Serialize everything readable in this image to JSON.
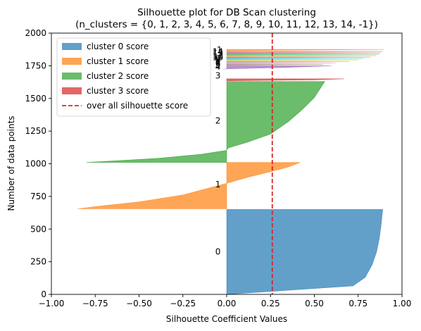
{
  "chart_data": {
    "type": "silhouette",
    "title": "Silhouette plot for DB Scan clustering",
    "subtitle": "(n_clusters = {0, 1, 2, 3, 4, 5, 6, 7, 8, 9, 10, 11, 12, 13, 14, -1})",
    "xlabel": "Silhouette Coefficient Values",
    "ylabel": "Number of data points",
    "xlim": [
      -1.0,
      1.0
    ],
    "ylim": [
      0,
      2000
    ],
    "xticks": [
      -1.0,
      -0.75,
      -0.5,
      -0.25,
      0.0,
      0.25,
      0.5,
      0.75,
      1.0
    ],
    "xtick_labels": [
      "−1.00",
      "−0.75",
      "−0.50",
      "−0.25",
      "0.00",
      "0.25",
      "0.50",
      "0.75",
      "1.00"
    ],
    "yticks": [
      0,
      250,
      500,
      750,
      1000,
      1250,
      1500,
      1750,
      2000
    ],
    "ytick_labels": [
      "0",
      "250",
      "500",
      "750",
      "1000",
      "1250",
      "1500",
      "1750",
      "2000"
    ],
    "legend_position": "top-left",
    "average_silhouette_score": 0.26,
    "average_line_color": "#d62728",
    "legend": [
      {
        "label": "cluster 0 score",
        "kind": "patch",
        "color": "#1f77b4"
      },
      {
        "label": "cluster 1 score",
        "kind": "patch",
        "color": "#ff7f0e"
      },
      {
        "label": "cluster 2 score",
        "kind": "patch",
        "color": "#2ca02c"
      },
      {
        "label": "cluster 3 score",
        "kind": "patch",
        "color": "#d62728"
      },
      {
        "label": "over all silhouette score",
        "kind": "dashed",
        "color": "#d62728"
      }
    ],
    "clusters": [
      {
        "label": "0",
        "color": "#1f77b4",
        "y_start": 0,
        "y_end": 650,
        "profile": [
          [
            0,
            0.0
          ],
          [
            0.1,
            0.72
          ],
          [
            0.2,
            0.79
          ],
          [
            0.35,
            0.83
          ],
          [
            0.5,
            0.855
          ],
          [
            0.65,
            0.87
          ],
          [
            0.8,
            0.88
          ],
          [
            0.9,
            0.885
          ],
          [
            1.0,
            0.89
          ]
        ],
        "label_y": 325
      },
      {
        "label": "1",
        "color": "#ff7f0e",
        "y_start": 655,
        "y_end": 1010,
        "profile": [
          [
            0,
            -0.85
          ],
          [
            0.06,
            -0.72
          ],
          [
            0.15,
            -0.5
          ],
          [
            0.3,
            -0.25
          ],
          [
            0.45,
            -0.1
          ],
          [
            0.55,
            0.0
          ],
          [
            0.68,
            0.12
          ],
          [
            0.8,
            0.25
          ],
          [
            0.9,
            0.35
          ],
          [
            1.0,
            0.42
          ]
        ],
        "label_y": 840
      },
      {
        "label": "2",
        "color": "#2ca02c",
        "y_start": 1010,
        "y_end": 1630,
        "profile": [
          [
            0,
            -0.8
          ],
          [
            0.05,
            -0.4
          ],
          [
            0.1,
            -0.15
          ],
          [
            0.15,
            0.0
          ],
          [
            0.18,
            0.01
          ],
          [
            0.25,
            0.12
          ],
          [
            0.35,
            0.25
          ],
          [
            0.5,
            0.35
          ],
          [
            0.65,
            0.43
          ],
          [
            0.8,
            0.5
          ],
          [
            0.9,
            0.53
          ],
          [
            1.0,
            0.56
          ]
        ],
        "label_y": 1330
      },
      {
        "label": "3",
        "color": "#d62728",
        "y_start": 1635,
        "y_end": 1650,
        "profile": [
          [
            0,
            0.0
          ],
          [
            0.5,
            0.5
          ],
          [
            1.0,
            0.67
          ]
        ],
        "label_y": 1675
      },
      {
        "label": "4",
        "color": "#9467bd",
        "y_start": 1725,
        "y_end": 1750,
        "profile": [
          [
            0,
            -0.02
          ],
          [
            0.5,
            0.35
          ],
          [
            1.0,
            0.6
          ]
        ],
        "label_y": 1740
      },
      {
        "label": "5",
        "color": "#8c564b",
        "y_start": 1755,
        "y_end": 1760,
        "profile": [
          [
            0,
            0.0
          ],
          [
            1.0,
            0.55
          ]
        ],
        "label_y": 1758
      },
      {
        "label": "6",
        "color": "#e377c2",
        "y_start": 1765,
        "y_end": 1772,
        "profile": [
          [
            0,
            0.0
          ],
          [
            1.0,
            0.62
          ]
        ],
        "label_y": 1769
      },
      {
        "label": "7",
        "color": "#7f7f7f",
        "y_start": 1777,
        "y_end": 1783,
        "profile": [
          [
            0,
            0.0
          ],
          [
            1.0,
            0.7
          ]
        ],
        "label_y": 1780
      },
      {
        "label": "8",
        "color": "#bcbd22",
        "y_start": 1788,
        "y_end": 1794,
        "profile": [
          [
            0,
            0.0
          ],
          [
            1.0,
            0.75
          ]
        ],
        "label_y": 1791
      },
      {
        "label": "9",
        "color": "#17becf",
        "y_start": 1799,
        "y_end": 1805,
        "profile": [
          [
            0,
            0.0
          ],
          [
            1.0,
            0.78
          ]
        ],
        "label_y": 1802
      },
      {
        "label": "10",
        "color": "#1f77b4",
        "y_start": 1810,
        "y_end": 1816,
        "profile": [
          [
            0,
            0.0
          ],
          [
            1.0,
            0.82
          ]
        ],
        "label_y": 1813
      },
      {
        "label": "11",
        "color": "#ff7f0e",
        "y_start": 1821,
        "y_end": 1827,
        "profile": [
          [
            0,
            0.0
          ],
          [
            1.0,
            0.85
          ]
        ],
        "label_y": 1824
      },
      {
        "label": "12",
        "color": "#2ca02c",
        "y_start": 1832,
        "y_end": 1838,
        "profile": [
          [
            0,
            0.0
          ],
          [
            1.0,
            0.87
          ]
        ],
        "label_y": 1835
      },
      {
        "label": "13",
        "color": "#d62728",
        "y_start": 1843,
        "y_end": 1849,
        "profile": [
          [
            0,
            0.0
          ],
          [
            1.0,
            0.88
          ]
        ],
        "label_y": 1846
      },
      {
        "label": "14",
        "color": "#9467bd",
        "y_start": 1854,
        "y_end": 1860,
        "profile": [
          [
            0,
            0.0
          ],
          [
            1.0,
            0.89
          ]
        ],
        "label_y": 1857
      },
      {
        "label": "-1",
        "color": "#ff7f0e",
        "y_start": 1865,
        "y_end": 1875,
        "profile": [
          [
            0,
            0.0
          ],
          [
            1.0,
            0.9
          ]
        ],
        "label_y": 1870
      }
    ]
  }
}
